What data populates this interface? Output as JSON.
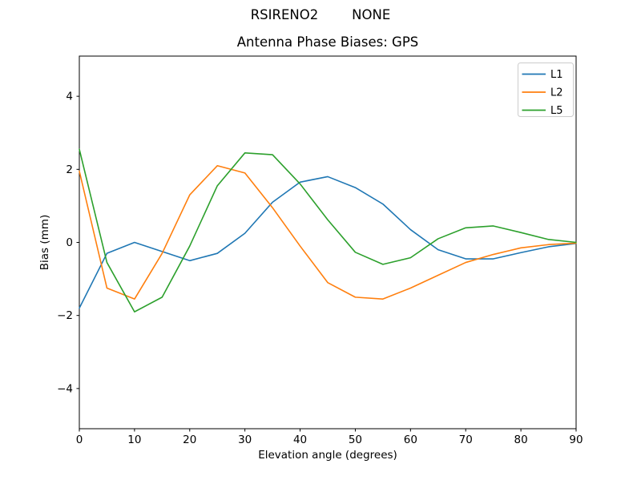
{
  "figure": {
    "suptitle": "RSIRENO2        NONE",
    "background_color": "#ffffff"
  },
  "chart_data": {
    "type": "line",
    "title": "Antenna Phase Biases: GPS",
    "xlabel": "Elevation angle (degrees)",
    "ylabel": "Bias (mm)",
    "xlim": [
      0,
      90
    ],
    "ylim": [
      -5.1,
      5.1
    ],
    "xticks": [
      0,
      10,
      20,
      30,
      40,
      50,
      60,
      70,
      80,
      90
    ],
    "yticks": [
      -4,
      -2,
      0,
      2,
      4
    ],
    "grid": false,
    "legend": {
      "position": "upper right"
    },
    "x": [
      0,
      5,
      10,
      15,
      20,
      25,
      30,
      35,
      40,
      45,
      50,
      55,
      60,
      65,
      70,
      75,
      80,
      85,
      90
    ],
    "series": [
      {
        "name": "L1",
        "color": "#1f77b4",
        "values": [
          -1.8,
          -0.3,
          0.0,
          -0.25,
          -0.5,
          -0.3,
          0.25,
          1.1,
          1.65,
          1.8,
          1.5,
          1.05,
          0.35,
          -0.2,
          -0.45,
          -0.45,
          -0.28,
          -0.12,
          -0.03
        ]
      },
      {
        "name": "L2",
        "color": "#ff7f0e",
        "values": [
          1.95,
          -1.25,
          -1.55,
          -0.3,
          1.3,
          2.1,
          1.9,
          0.95,
          -0.1,
          -1.1,
          -1.5,
          -1.55,
          -1.25,
          -0.9,
          -0.55,
          -0.33,
          -0.15,
          -0.06,
          -0.02
        ]
      },
      {
        "name": "L5",
        "color": "#2ca02c",
        "values": [
          2.55,
          -0.55,
          -1.9,
          -1.5,
          -0.1,
          1.55,
          2.45,
          2.4,
          1.6,
          0.62,
          -0.27,
          -0.6,
          -0.42,
          0.1,
          0.4,
          0.45,
          0.27,
          0.08,
          0.0
        ]
      }
    ]
  }
}
